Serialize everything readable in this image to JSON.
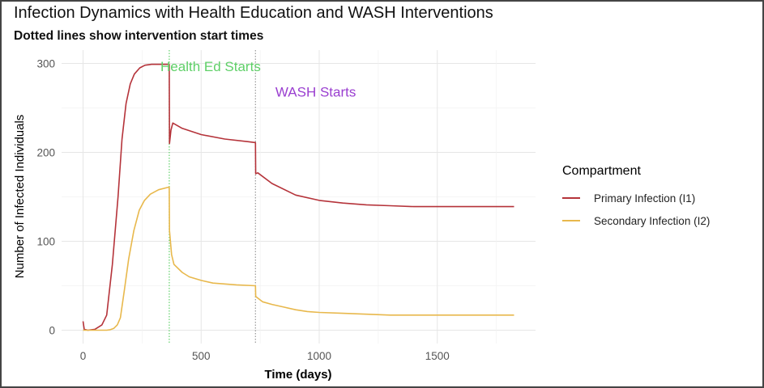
{
  "chart_data": {
    "type": "line",
    "title": "Infection Dynamics with Health Education and WASH Interventions",
    "subtitle": "Dotted lines show intervention start times",
    "xlabel": "Time (days)",
    "ylabel": "Number of Infected Individuals",
    "xlim": [
      -91,
      1916
    ],
    "ylim": [
      -15,
      315
    ],
    "x_ticks": [
      0,
      500,
      1000,
      1500
    ],
    "x_tick_labels": [
      "0",
      "500",
      "1000",
      "1500"
    ],
    "y_ticks": [
      0,
      100,
      200,
      300
    ],
    "y_tick_labels": [
      "0",
      "100",
      "200",
      "300"
    ],
    "grid": true,
    "legend": {
      "title": "Compartment",
      "placement": "right"
    },
    "series": [
      {
        "name": "Primary Infection (I1)",
        "color": "#b5333a",
        "x": [
          0,
          5,
          20,
          50,
          80,
          100,
          124,
          148,
          165,
          182,
          200,
          217,
          240,
          262,
          290,
          320,
          365,
          366,
          372,
          380,
          420,
          500,
          600,
          700,
          730,
          731,
          740,
          800,
          900,
          1000,
          1100,
          1200,
          1300,
          1400,
          1500,
          1825
        ],
        "y": [
          10,
          1,
          0,
          1,
          6,
          17,
          74,
          150,
          215,
          255,
          277,
          288,
          295,
          298,
          299,
          299,
          299,
          210,
          225,
          233,
          227,
          220,
          215,
          212,
          211,
          176,
          177,
          165,
          152,
          146,
          143,
          141,
          140,
          139,
          139,
          139
        ]
      },
      {
        "name": "Secondary Infection (I2)",
        "color": "#e8b84c",
        "x": [
          0,
          100,
          115,
          130,
          145,
          158,
          175,
          193,
          215,
          238,
          260,
          285,
          320,
          365,
          366,
          375,
          385,
          420,
          450,
          500,
          550,
          650,
          730,
          731,
          760,
          800,
          850,
          900,
          950,
          1000,
          1100,
          1200,
          1300,
          1825
        ],
        "y": [
          0,
          0,
          0.5,
          2,
          6,
          14,
          45,
          80,
          112,
          135,
          146,
          153,
          158,
          161,
          112,
          85,
          74,
          65,
          60,
          56,
          53,
          51,
          50,
          38,
          32,
          29,
          26,
          23,
          21,
          20,
          19,
          18,
          17,
          17
        ]
      }
    ],
    "vlines": [
      {
        "x": 365,
        "color": "#5fd068",
        "label": "Health Ed Starts",
        "label_x": 540,
        "label_y": 297
      },
      {
        "x": 730,
        "color": "#999999",
        "label": "WASH Starts",
        "label_x": 985,
        "label_y": 268,
        "label_color": "#9a3fd0"
      }
    ]
  }
}
